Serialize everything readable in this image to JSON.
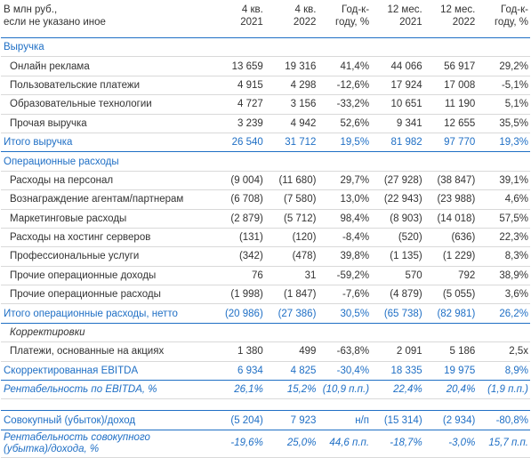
{
  "header": {
    "label_line1": "В млн руб.,",
    "label_line2": "если не указано иное",
    "columns": [
      {
        "line1": "4 кв.",
        "line2": "2021"
      },
      {
        "line1": "4 кв.",
        "line2": "2022"
      },
      {
        "line1": "Год-к-",
        "line2": "году, %"
      },
      {
        "line1": "12 мес.",
        "line2": "2021"
      },
      {
        "line1": "12 мес.",
        "line2": "2022"
      },
      {
        "line1": "Год-к-",
        "line2": "году, %"
      }
    ]
  },
  "rows": [
    {
      "label": "Выручка",
      "values": [
        "",
        "",
        "",
        "",
        "",
        ""
      ]
    },
    {
      "label": "Онлайн реклама",
      "values": [
        "13 659",
        "19 316",
        "41,4%",
        "44 066",
        "56 917",
        "29,2%"
      ]
    },
    {
      "label": "Пользовательские платежи",
      "values": [
        "4 915",
        "4 298",
        "-12,6%",
        "17 924",
        "17 008",
        "-5,1%"
      ]
    },
    {
      "label": "Образовательные технологии",
      "values": [
        "4 727",
        "3 156",
        "-33,2%",
        "10 651",
        "11 190",
        "5,1%"
      ]
    },
    {
      "label": "Прочая выручка",
      "values": [
        "3 239",
        "4 942",
        "52,6%",
        "9 341",
        "12 655",
        "35,5%"
      ]
    },
    {
      "label": "Итого выручка",
      "values": [
        "26 540",
        "31 712",
        "19,5%",
        "81 982",
        "97 770",
        "19,3%"
      ]
    },
    {
      "label": "Операционные расходы",
      "values": [
        "",
        "",
        "",
        "",
        "",
        ""
      ]
    },
    {
      "label": "Расходы на персонал",
      "values": [
        "(9 004)",
        "(11 680)",
        "29,7%",
        "(27 928)",
        "(38 847)",
        "39,1%"
      ]
    },
    {
      "label": "Вознаграждение агентам/партнерам",
      "values": [
        "(6 708)",
        "(7 580)",
        "13,0%",
        "(22 943)",
        "(23 988)",
        "4,6%"
      ]
    },
    {
      "label": "Маркетинговые расходы",
      "values": [
        "(2 879)",
        "(5 712)",
        "98,4%",
        "(8 903)",
        "(14 018)",
        "57,5%"
      ]
    },
    {
      "label": "Расходы на хостинг серверов",
      "values": [
        "(131)",
        "(120)",
        "-8,4%",
        "(520)",
        "(636)",
        "22,3%"
      ]
    },
    {
      "label": "Профессиональные услуги",
      "values": [
        "(342)",
        "(478)",
        "39,8%",
        "(1 135)",
        "(1 229)",
        "8,3%"
      ]
    },
    {
      "label": "Прочие операционные доходы",
      "values": [
        "76",
        "31",
        "-59,2%",
        "570",
        "792",
        "38,9%"
      ]
    },
    {
      "label": "Прочие операционные расходы",
      "values": [
        "(1 998)",
        "(1 847)",
        "-7,6%",
        "(4 879)",
        "(5 055)",
        "3,6%"
      ]
    },
    {
      "label": "Итого операционные расходы, нетто",
      "values": [
        "(20 986)",
        "(27 386)",
        "30,5%",
        "(65 738)",
        "(82 981)",
        "26,2%"
      ]
    },
    {
      "label": "Корректировки",
      "values": [
        "",
        "",
        "",
        "",
        "",
        ""
      ]
    },
    {
      "label": "Платежи, основанные на акциях",
      "values": [
        "1 380",
        "499",
        "-63,8%",
        "2 091",
        "5 186",
        "2,5x"
      ]
    },
    {
      "label": "Скорректированная EBITDA",
      "values": [
        "6 934",
        "4 825",
        "-30,4%",
        "18 335",
        "19 975",
        "8,9%"
      ]
    },
    {
      "label": "Рентабельность по EBITDA, %",
      "values": [
        "26,1%",
        "15,2%",
        "(10,9 п.п.)",
        "22,4%",
        "20,4%",
        "(1,9 п.п.)"
      ]
    },
    {
      "label": "Совокупный (убыток)/доход",
      "values": [
        "(5 204)",
        "7 923",
        "н/п",
        "(15 314)",
        "(2 934)",
        "-80,8%"
      ]
    },
    {
      "label_line1": "Рентабельность совокупного",
      "label_line2": "(убытка)/дохода, %",
      "values": [
        "-19,6%",
        "25,0%",
        "44,6 п.п.",
        "-18,7%",
        "-3,0%",
        "15,7 п.п."
      ]
    }
  ],
  "colors": {
    "accent": "#1f6fc5",
    "text": "#333333",
    "rule": "#d9d9d9"
  }
}
